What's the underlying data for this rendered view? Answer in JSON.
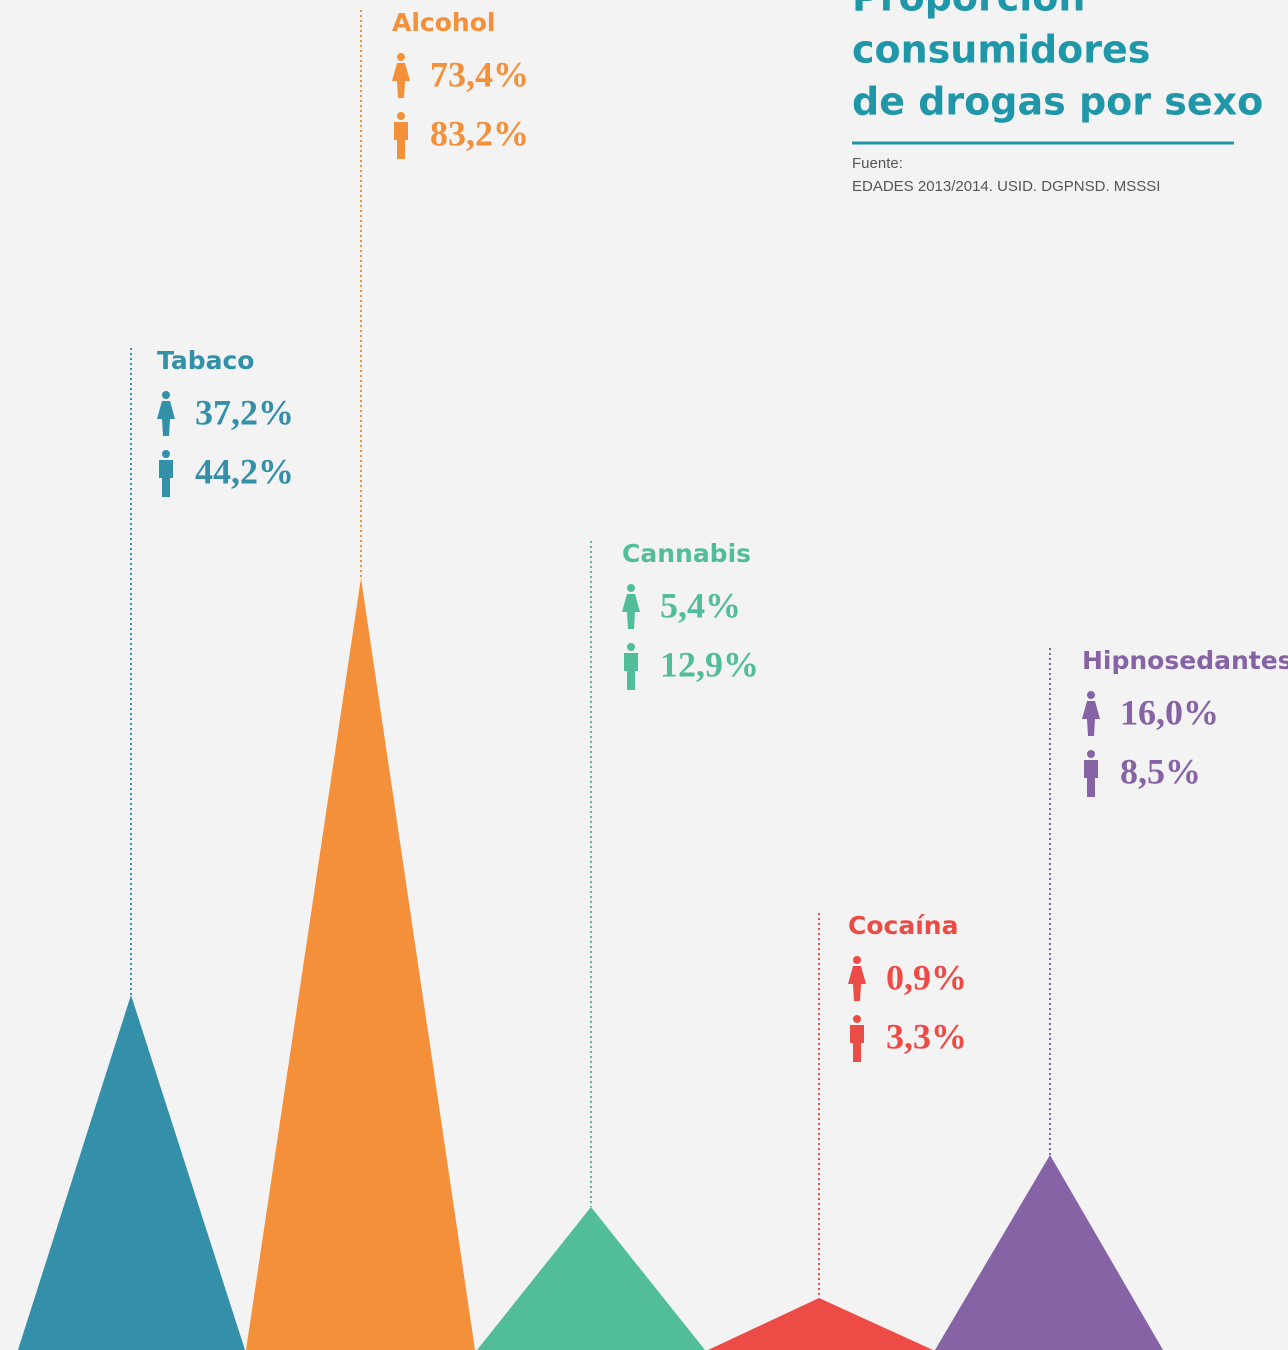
{
  "chart_data": {
    "type": "pictogram",
    "title": [
      "Proporción",
      "consumidores",
      "de drogas por sexo"
    ],
    "source_label": "Fuente:",
    "source": "EDADES 2013/2014. USID. DGPNSD. MSSSI",
    "categories": [
      "Tabaco",
      "Alcohol",
      "Cannabis",
      "Cocaína",
      "Hipnosedantes"
    ],
    "colors": [
      "#348fa8",
      "#f48f3a",
      "#52bd9a",
      "#ec4c45",
      "#8663a5"
    ],
    "women": {
      "values": [
        37.2,
        73.4,
        5.4,
        0.9,
        16.0
      ],
      "value_labels": [
        "37,2%",
        "73,4%",
        "5,4%",
        "0,9%",
        "16,0%"
      ]
    },
    "men": {
      "values": [
        44.2,
        83.2,
        12.9,
        3.3,
        8.5
      ],
      "value_labels": [
        "44,2%",
        "83,2%",
        "12,9%",
        "3,3%",
        "8,5%"
      ]
    }
  }
}
